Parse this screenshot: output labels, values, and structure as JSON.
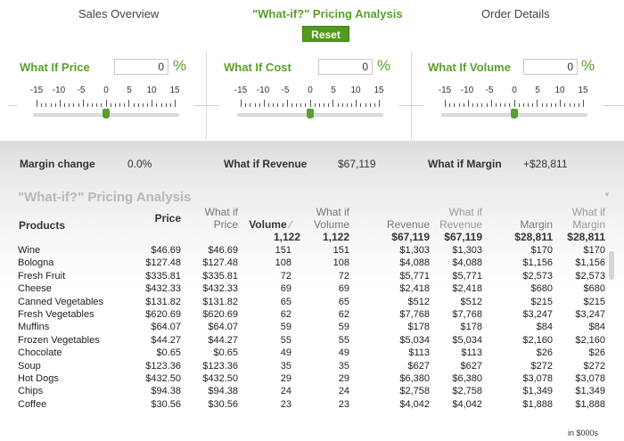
{
  "tabs": {
    "sales": "Sales Overview",
    "pricing": "\"What-if?\" Pricing Analysis",
    "order": "Order Details"
  },
  "reset_label": "Reset",
  "controls": [
    {
      "label": "What If Price",
      "value": "0",
      "unit": "%"
    },
    {
      "label": "What If Cost",
      "value": "0",
      "unit": "%"
    },
    {
      "label": "What If Volume",
      "value": "0",
      "unit": "%"
    }
  ],
  "slider": {
    "ticks": [
      "-15",
      "-10",
      "-5",
      "0",
      "5",
      "10",
      "15"
    ],
    "value": 0
  },
  "summary": {
    "margin_change_label": "Margin change",
    "margin_change_value": "0.0%",
    "revenue_label": "What if Revenue",
    "revenue_value": "$67,119",
    "margin_label": "What if Margin",
    "margin_value": "+$28,811"
  },
  "table": {
    "title": "\"What-if?\" Pricing Analysis",
    "headers": {
      "products": "Products",
      "price": "Price",
      "whatif_price_1": "What if",
      "whatif_price_2": "Price",
      "volume": "Volume",
      "volume_total": "1,122",
      "whatif_volume_1": "What if",
      "whatif_volume_2": "Volume",
      "whatif_volume_total": "1,122",
      "revenue": "Revenue",
      "revenue_total": "$67,119",
      "whatif_revenue_1": "What if",
      "whatif_revenue_2": "Revenue",
      "whatif_revenue_total": "$67,119",
      "margin": "Margin",
      "margin_total": "$28,811",
      "whatif_margin_1": "What if",
      "whatif_margin_2": "Margin",
      "whatif_margin_total": "$28,811"
    },
    "rows": [
      [
        "Wine",
        "$46.69",
        "$46.69",
        "151",
        "151",
        "$1,303",
        "$1,303",
        "$170",
        "$170"
      ],
      [
        "Bologna",
        "$127.48",
        "$127.48",
        "108",
        "108",
        "$4,088",
        "$4,088",
        "$1,156",
        "$1,156"
      ],
      [
        "Fresh Fruit",
        "$335.81",
        "$335.81",
        "72",
        "72",
        "$5,771",
        "$5,771",
        "$2,573",
        "$2,573"
      ],
      [
        "Cheese",
        "$432.33",
        "$432.33",
        "69",
        "69",
        "$2,418",
        "$2,418",
        "$680",
        "$680"
      ],
      [
        "Canned Vegetables",
        "$131.82",
        "$131.82",
        "65",
        "65",
        "$512",
        "$512",
        "$215",
        "$215"
      ],
      [
        "Fresh Vegetables",
        "$620.69",
        "$620.69",
        "62",
        "62",
        "$7,768",
        "$7,768",
        "$3,247",
        "$3,247"
      ],
      [
        "Muffins",
        "$64.07",
        "$64.07",
        "59",
        "59",
        "$178",
        "$178",
        "$84",
        "$84"
      ],
      [
        "Frozen Vegetables",
        "$44.27",
        "$44.27",
        "55",
        "55",
        "$5,034",
        "$5,034",
        "$2,160",
        "$2,160"
      ],
      [
        "Chocolate",
        "$0.65",
        "$0.65",
        "49",
        "49",
        "$113",
        "$113",
        "$26",
        "$26"
      ],
      [
        "Soup",
        "$123.36",
        "$123.36",
        "35",
        "35",
        "$627",
        "$627",
        "$272",
        "$272"
      ],
      [
        "Hot Dogs",
        "$432.50",
        "$432.50",
        "29",
        "29",
        "$6,380",
        "$6,380",
        "$3,078",
        "$3,078"
      ],
      [
        "Chips",
        "$94.38",
        "$94.38",
        "24",
        "24",
        "$2,758",
        "$2,758",
        "$1,349",
        "$1,349"
      ],
      [
        "Coffee",
        "$30.56",
        "$30.56",
        "23",
        "23",
        "$4,042",
        "$4,042",
        "$1,888",
        "$1,888"
      ]
    ]
  },
  "footnote": "in $000s",
  "colors": {
    "accent": "#5aa02c",
    "button": "#4f9a1f"
  }
}
